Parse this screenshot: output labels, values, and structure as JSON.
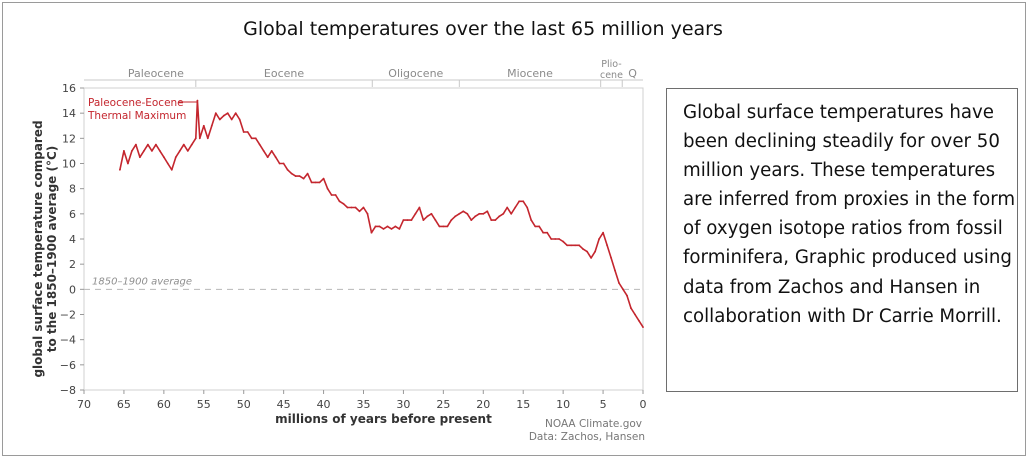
{
  "title": "Global temperatures over the last 65 million years",
  "annotation": "Paleocene-Eocene\nThermal Maximum",
  "baseline_label": "1850–1900 average",
  "credit_line1": "NOAA Climate.gov",
  "credit_line2": "Data: Zachos, Hansen",
  "description": "Global surface temperatures have been declining steadily for over 50 million years. These temperatures are inferred from proxies in the form of oxygen isotope ratios from fossil forminifera, Graphic produced using data from Zachos and Hansen in collaboration with Dr Carrie Morrill.",
  "epochs": [
    {
      "name": "Paleocene",
      "start": 66,
      "end": 56
    },
    {
      "name": "Eocene",
      "start": 56,
      "end": 33.9
    },
    {
      "name": "Oligocene",
      "start": 33.9,
      "end": 23
    },
    {
      "name": "Miocene",
      "start": 23,
      "end": 5.3
    },
    {
      "name": "Plio-\ncene",
      "start": 5.3,
      "end": 2.6
    },
    {
      "name": "Q",
      "start": 2.6,
      "end": 0
    }
  ],
  "chart_data": {
    "type": "line",
    "title": "Global temperatures over the last 65 million years",
    "xlabel": "millions of years before present",
    "ylabel": "global surface temperature compared\nto the 1850–1900 average (°C)",
    "xlim": [
      70,
      0
    ],
    "ylim": [
      -8,
      16
    ],
    "x_ticks": [
      70,
      65,
      60,
      55,
      50,
      45,
      40,
      35,
      30,
      25,
      20,
      15,
      10,
      5,
      0
    ],
    "y_ticks": [
      16,
      14,
      12,
      10,
      8,
      6,
      4,
      2,
      0,
      -2,
      -4,
      -6,
      -8
    ],
    "baseline": 0,
    "color": "#c4262e",
    "series": [
      {
        "x": [
          65.5,
          65,
          64.5,
          64,
          63.5,
          63,
          62.5,
          62,
          61.5,
          61,
          60.5,
          60,
          59.5,
          59,
          58.5,
          58,
          57.5,
          57,
          56.5,
          56,
          55.8,
          55.5,
          55,
          54.5,
          54,
          53.5,
          53,
          52.5,
          52,
          51.5,
          51,
          50.5,
          50,
          49.5,
          49,
          48.5,
          48,
          47.5,
          47,
          46.5,
          46,
          45.5,
          45,
          44.5,
          44,
          43.5,
          43,
          42.5,
          42,
          41.5,
          41,
          40.5,
          40,
          39.5,
          39,
          38.5,
          38,
          37.5,
          37,
          36.5,
          36,
          35.5,
          35,
          34.5,
          34,
          33.5,
          33,
          32.5,
          32,
          31.5,
          31,
          30.5,
          30,
          29.5,
          29,
          28.5,
          28,
          27.5,
          27,
          26.5,
          26,
          25.5,
          25,
          24.5,
          24,
          23.5,
          23,
          22.5,
          22,
          21.5,
          21,
          20.5,
          20,
          19.5,
          19,
          18.5,
          18,
          17.5,
          17,
          16.5,
          16,
          15.5,
          15,
          14.5,
          14,
          13.5,
          13,
          12.5,
          12,
          11.5,
          11,
          10.5,
          10,
          9.5,
          9,
          8.5,
          8,
          7.5,
          7,
          6.5,
          6,
          5.5,
          5,
          4.5,
          4,
          3.5,
          3,
          2.5,
          2,
          1.5,
          1,
          0.5,
          0
        ],
        "y": [
          9.5,
          11,
          10,
          11,
          11.5,
          10.5,
          11,
          11.5,
          11,
          11.5,
          11,
          10.5,
          10,
          9.5,
          10.5,
          11,
          11.5,
          11,
          11.5,
          12,
          15,
          12,
          13,
          12,
          13,
          14,
          13.5,
          13.8,
          14,
          13.5,
          14,
          13.5,
          12.5,
          12.5,
          12,
          12,
          11.5,
          11,
          10.5,
          11,
          10.5,
          10,
          10,
          9.5,
          9.2,
          9,
          9,
          8.8,
          9.2,
          8.5,
          8.5,
          8.5,
          8.8,
          8,
          7.5,
          7.5,
          7,
          6.8,
          6.5,
          6.5,
          6.5,
          6.2,
          6.5,
          6,
          4.5,
          5,
          5,
          4.8,
          5,
          4.8,
          5,
          4.8,
          5.5,
          5.5,
          5.5,
          6,
          6.5,
          5.5,
          5.8,
          6,
          5.5,
          5,
          5,
          5,
          5.5,
          5.8,
          6,
          6.2,
          6,
          5.5,
          5.8,
          6,
          6,
          6.2,
          5.5,
          5.5,
          5.8,
          6,
          6.5,
          6,
          6.5,
          7,
          7,
          6.5,
          5.5,
          5,
          5,
          4.5,
          4.5,
          4,
          4,
          4,
          3.8,
          3.5,
          3.5,
          3.5,
          3.5,
          3.2,
          3,
          2.5,
          3,
          4,
          4.5,
          3.5,
          2.5,
          1.5,
          0.5,
          0,
          -0.5,
          -1.5,
          -2,
          -2.5,
          -3
        ]
      }
    ]
  }
}
